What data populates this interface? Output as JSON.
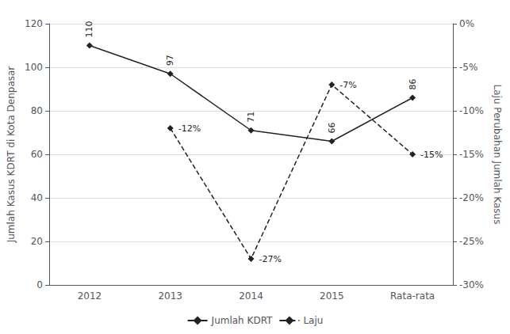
{
  "chart_data": {
    "type": "line",
    "categories": [
      "2012",
      "2013",
      "2014",
      "2015",
      "Rata-rata"
    ],
    "series": [
      {
        "name": "Jumlah KDRT",
        "axis": "y",
        "color": "#222222",
        "marker": "diamond",
        "line_style": "solid",
        "values": [
          110,
          97,
          71,
          66,
          86
        ]
      },
      {
        "name": "Laju",
        "axis": "y2",
        "color": "#222222",
        "marker": "diamond",
        "line_style": "dashed",
        "values": [
          null,
          -12,
          -27,
          -7,
          -15
        ],
        "value_labels": [
          null,
          "-12%",
          "-27%",
          "-7%",
          "-15%"
        ]
      }
    ],
    "ylabel": "Jumlah Kasus KDRT di Kota Denpasar",
    "y2label": "Laju Perubahan Jumlah Kasus",
    "ylim": [
      0,
      120
    ],
    "yticks": [
      0,
      20,
      40,
      60,
      80,
      100,
      120
    ],
    "y2lim": [
      -30,
      0
    ],
    "y2ticks": [
      {
        "value": 0,
        "label": "0%"
      },
      {
        "value": -5,
        "label": "-5%"
      },
      {
        "value": -10,
        "label": "-10%"
      },
      {
        "value": -15,
        "label": "-15%"
      },
      {
        "value": -20,
        "label": "-20%"
      },
      {
        "value": -25,
        "label": "-25%"
      },
      {
        "value": -30,
        "label": "-30%"
      }
    ],
    "grid": true,
    "legend": "bottom",
    "data_labels": true
  }
}
